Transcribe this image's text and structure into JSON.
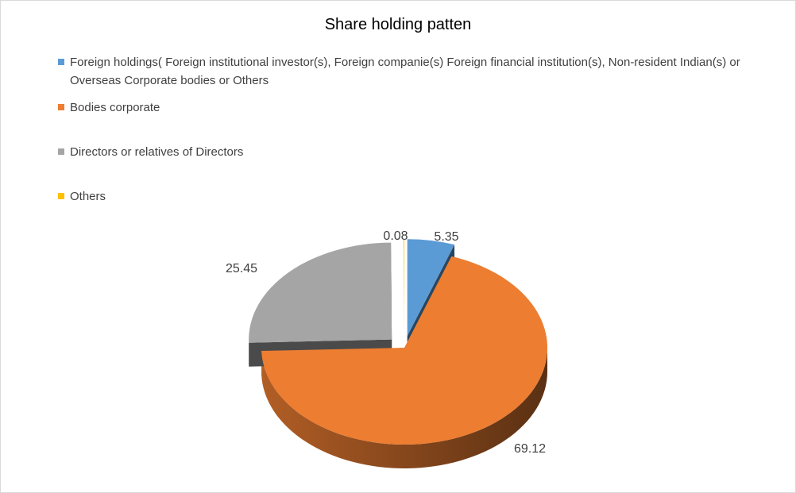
{
  "chart_data": {
    "type": "pie",
    "title": "Share holding patten",
    "legend_position": "top",
    "exploded": true,
    "three_d": true,
    "series": [
      {
        "name": "Foreign holdings( Foreign institutional investor(s), Foreign companie(s) Foreign financial institution(s), Non-resident Indian(s) or Overseas Corporate bodies or Others",
        "value": 5.35,
        "label": "5.35",
        "color": "#5B9BD5"
      },
      {
        "name": "Bodies corporate",
        "value": 69.12,
        "label": "69.12",
        "color": "#ED7D31"
      },
      {
        "name": "Directors or relatives of Directors",
        "value": 25.45,
        "label": "25.45",
        "color": "#A5A5A5"
      },
      {
        "name": "Others",
        "value": 0.08,
        "label": "0.08",
        "color": "#FFC000"
      }
    ]
  }
}
